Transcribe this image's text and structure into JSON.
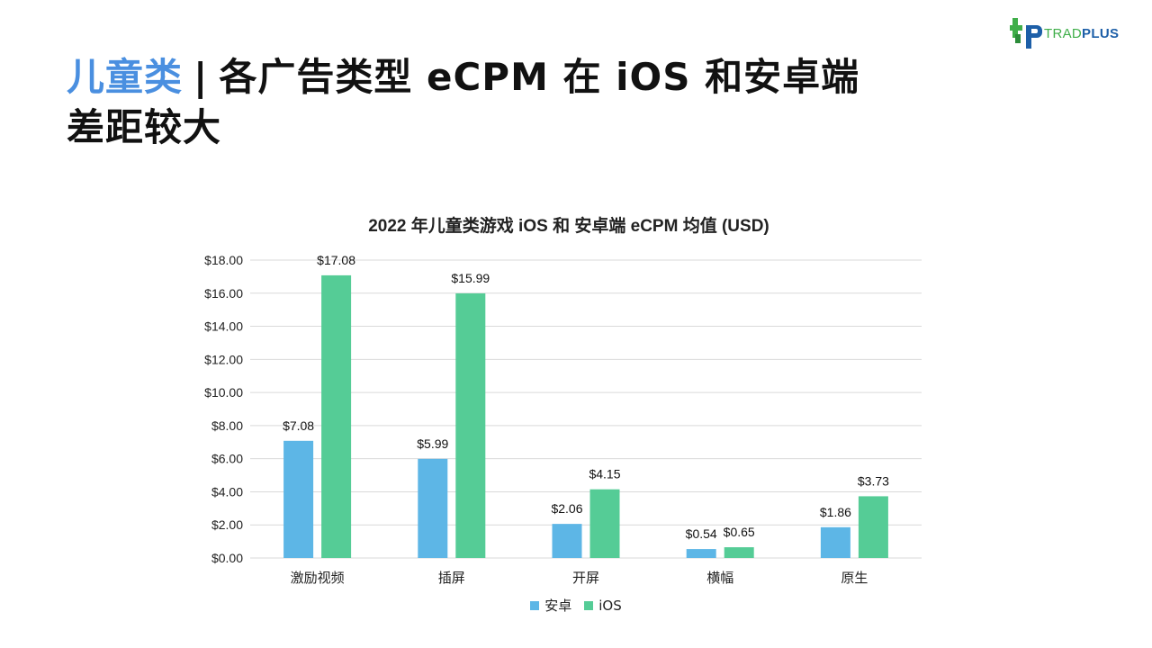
{
  "brand": {
    "name_part1": "TRAD",
    "name_part2": "PLUS"
  },
  "headline": {
    "highlight": "儿童类",
    "separator": "|",
    "line1_rest": "各广告类型 eCPM 在 iOS 和安卓端",
    "line2": "差距较大"
  },
  "colors": {
    "android": "#5db6e6",
    "ios": "#55cc96",
    "headline_highlight": "#4a8fe0",
    "grid": "#d9d9d9"
  },
  "chart_data": {
    "type": "bar",
    "title": "2022 年儿童类游戏 iOS 和 安卓端 eCPM 均值 (USD)",
    "categories": [
      "激励视频",
      "插屏",
      "开屏",
      "横幅",
      "原生"
    ],
    "series": [
      {
        "name": "安卓",
        "values": [
          7.08,
          5.99,
          2.06,
          0.54,
          1.86
        ],
        "labels": [
          "$7.08",
          "$5.99",
          "$2.06",
          "$0.54",
          "$1.86"
        ]
      },
      {
        "name": "iOS",
        "values": [
          17.08,
          15.99,
          4.15,
          0.65,
          3.73
        ],
        "labels": [
          "$17.08",
          "$15.99",
          "$4.15",
          "$0.65",
          "$3.73"
        ]
      }
    ],
    "ylim": [
      0,
      18
    ],
    "yticks": [
      0,
      2,
      4,
      6,
      8,
      10,
      12,
      14,
      16,
      18
    ],
    "ytick_labels": [
      "$0.00",
      "$2.00",
      "$4.00",
      "$6.00",
      "$8.00",
      "$10.00",
      "$12.00",
      "$14.00",
      "$16.00",
      "$18.00"
    ],
    "grid": true,
    "legend_position": "bottom-center"
  }
}
